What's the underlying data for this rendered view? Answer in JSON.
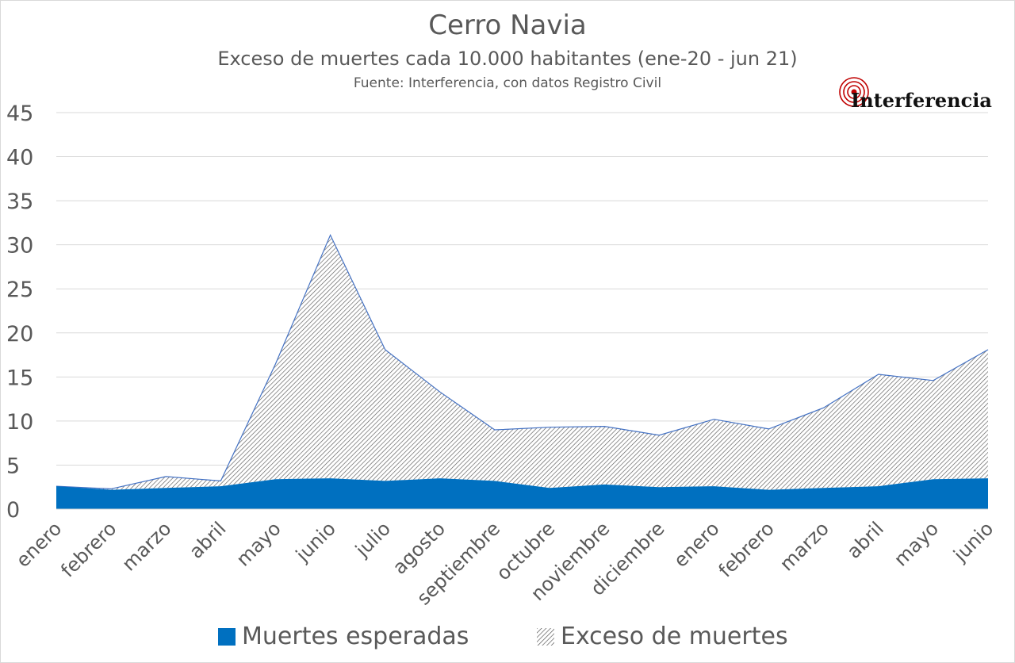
{
  "chart_data": {
    "type": "area",
    "title": "Cerro Navia",
    "subtitle": "Exceso de muertes cada 10.000 habitantes (ene-20  - jun 21)",
    "source": "Fuente: Interferencia, con datos Registro Civil",
    "categories": [
      "enero",
      "febrero",
      "marzo",
      "abril",
      "mayo",
      "junio",
      "julio",
      "agosto",
      "septiembre",
      "octubre",
      "noviembre",
      "diciembre",
      "enero",
      "febrero",
      "marzo",
      "abril",
      "mayo",
      "junio"
    ],
    "series": [
      {
        "name": "Muertes esperadas",
        "values": [
          2.6,
          2.2,
          2.4,
          2.6,
          3.4,
          3.5,
          3.2,
          3.5,
          3.2,
          2.4,
          2.8,
          2.5,
          2.6,
          2.2,
          2.4,
          2.6,
          3.4,
          3.5
        ]
      },
      {
        "name": "Exceso de muertes",
        "values": [
          0.0,
          0.1,
          1.3,
          0.6,
          13.1,
          27.6,
          14.9,
          9.8,
          5.8,
          6.9,
          6.6,
          5.9,
          7.6,
          6.9,
          9.1,
          12.7,
          11.2,
          14.6
        ]
      }
    ],
    "stacked": true,
    "yticks": [
      0,
      5,
      10,
      15,
      20,
      25,
      30,
      35,
      40,
      45
    ],
    "ylim": [
      0,
      45
    ],
    "grid": true,
    "legend_position": "bottom",
    "colors": {
      "expected": "#0070c0",
      "excess_hatch": "#595959",
      "excess_bg": "#ffffff",
      "excess_line": "#4472c4",
      "grid": "#d9d9d9",
      "text": "#595959"
    }
  },
  "logo": {
    "text": "Interferencia",
    "color": "#c00000"
  }
}
